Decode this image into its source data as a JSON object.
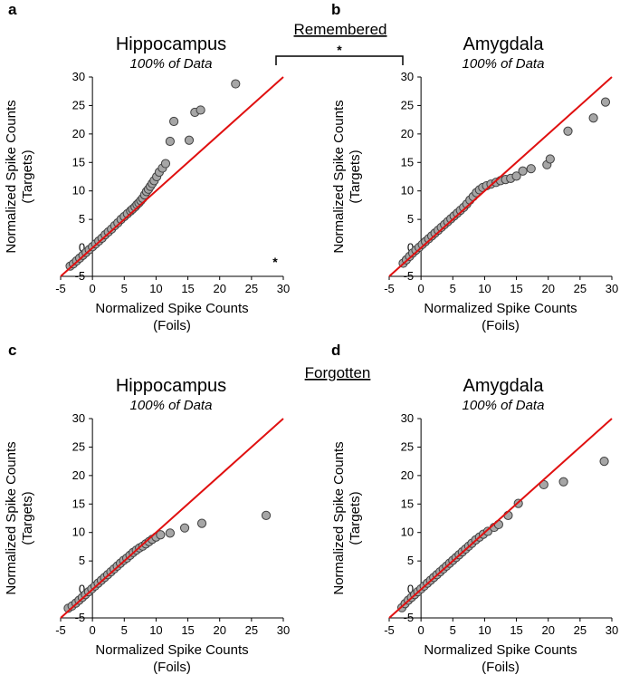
{
  "group_labels": {
    "top": "Remembered",
    "bottom": "Forgotten"
  },
  "significance": {
    "between_panels": "*",
    "panel_a": "*"
  },
  "colors": {
    "diagonal": "#e01010",
    "marker_fill": "#a6a6a6",
    "marker_stroke": "#404040"
  },
  "chart_data": [
    {
      "panel": "a",
      "type": "scatter",
      "title": "Hippocampus",
      "subtitle": "100% of Data",
      "xlabel": [
        "Normalized Spike Counts",
        "(Foils)"
      ],
      "ylabel": [
        "Normalized Spike Counts",
        "(Targets)"
      ],
      "xlim": [
        -5,
        30
      ],
      "ylim": [
        -5,
        30
      ],
      "xticks": [
        "-5",
        "0",
        "5",
        "10",
        "15",
        "20",
        "25",
        "30"
      ],
      "yticks": [
        "-5",
        "0",
        "5",
        "10",
        "15",
        "20",
        "25",
        "30"
      ],
      "reference_line": "y = x",
      "x": [
        -3.5,
        -3,
        -2.5,
        -2,
        -1.5,
        -1,
        -0.5,
        0,
        0.5,
        1,
        1.5,
        2,
        2.5,
        3,
        3.5,
        4,
        4.5,
        5,
        5.5,
        6,
        6.3,
        6.7,
        7,
        7.3,
        7.6,
        7.9,
        8.2,
        8.5,
        8.8,
        9.1,
        9.4,
        9.7,
        10.1,
        10.5,
        11,
        11.5,
        12.2,
        12.8,
        15.2,
        16.1,
        17.0,
        22.5
      ],
      "y": [
        -3.2,
        -2.8,
        -2.3,
        -1.8,
        -1.3,
        -0.8,
        -0.3,
        0.2,
        0.7,
        1.2,
        1.7,
        2.3,
        2.8,
        3.3,
        3.9,
        4.4,
        5.0,
        5.5,
        6.0,
        6.5,
        6.8,
        7.2,
        7.6,
        7.9,
        8.3,
        8.7,
        9.3,
        9.9,
        10.3,
        10.8,
        11.3,
        11.8,
        12.5,
        13.3,
        14.0,
        14.8,
        18.7,
        22.2,
        18.9,
        23.8,
        24.2,
        28.8
      ]
    },
    {
      "panel": "b",
      "type": "scatter",
      "title": "Amygdala",
      "subtitle": "100% of Data",
      "xlabel": [
        "Normalized Spike Counts",
        "(Foils)"
      ],
      "ylabel": [
        "Normalized Spike Counts",
        "(Targets)"
      ],
      "xlim": [
        -5,
        30
      ],
      "ylim": [
        -5,
        30
      ],
      "xticks": [
        "-5",
        "0",
        "5",
        "10",
        "15",
        "20",
        "25",
        "30"
      ],
      "yticks": [
        "-5",
        "0",
        "5",
        "10",
        "15",
        "20",
        "25",
        "30"
      ],
      "reference_line": "y = x",
      "x": [
        -2.8,
        -2.3,
        -1.8,
        -1.3,
        -0.8,
        -0.3,
        0.2,
        0.7,
        1.2,
        1.7,
        2.2,
        2.7,
        3.2,
        3.7,
        4.2,
        4.7,
        5.2,
        5.7,
        6.2,
        6.7,
        7.2,
        7.7,
        8.2,
        8.7,
        9.2,
        9.7,
        10.3,
        11.0,
        11.8,
        12.5,
        13.3,
        14.1,
        15.0,
        16.0,
        17.3,
        19.8,
        20.3,
        23.1,
        27.1,
        29.0
      ],
      "y": [
        -2.7,
        -2.1,
        -1.5,
        -0.9,
        -0.4,
        0.1,
        0.6,
        1.1,
        1.6,
        2.1,
        2.6,
        3.1,
        3.6,
        4.1,
        4.6,
        5.1,
        5.6,
        6.1,
        6.6,
        7.1,
        7.7,
        8.4,
        9.0,
        9.7,
        10.2,
        10.6,
        10.9,
        11.2,
        11.5,
        11.8,
        12.0,
        12.2,
        12.6,
        13.5,
        13.9,
        14.6,
        15.6,
        20.5,
        22.8,
        25.6
      ]
    },
    {
      "panel": "c",
      "type": "scatter",
      "title": "Hippocampus",
      "subtitle": "100% of Data",
      "xlabel": [
        "Normalized Spike Counts",
        "(Foils)"
      ],
      "ylabel": [
        "Normalized Spike Counts",
        "(Targets)"
      ],
      "xlim": [
        -5,
        30
      ],
      "ylim": [
        -5,
        30
      ],
      "xticks": [
        "-5",
        "0",
        "5",
        "10",
        "15",
        "20",
        "25",
        "30"
      ],
      "yticks": [
        "-5",
        "0",
        "5",
        "10",
        "15",
        "20",
        "25",
        "30"
      ],
      "reference_line": "y = x",
      "x": [
        -3.8,
        -3.2,
        -2.6,
        -2.1,
        -1.6,
        -1.1,
        -0.6,
        -0.1,
        0.4,
        0.9,
        1.4,
        1.9,
        2.4,
        2.9,
        3.4,
        3.9,
        4.4,
        4.9,
        5.4,
        5.9,
        6.4,
        6.9,
        7.4,
        7.9,
        8.4,
        8.9,
        9.4,
        10.0,
        10.7,
        12.2,
        14.5,
        17.2,
        27.3
      ],
      "y": [
        -3.3,
        -2.9,
        -2.4,
        -1.9,
        -1.4,
        -0.9,
        -0.4,
        0.1,
        0.6,
        1.1,
        1.6,
        2.1,
        2.6,
        3.1,
        3.6,
        4.1,
        4.6,
        5.1,
        5.5,
        6.0,
        6.5,
        6.9,
        7.3,
        7.6,
        8.0,
        8.4,
        8.8,
        9.2,
        9.6,
        9.9,
        10.8,
        11.6,
        13.0
      ]
    },
    {
      "panel": "d",
      "type": "scatter",
      "title": "Amygdala",
      "subtitle": "100% of Data",
      "xlabel": [
        "Normalized Spike Counts",
        "(Foils)"
      ],
      "ylabel": [
        "Normalized Spike Counts",
        "(Targets)"
      ],
      "xlim": [
        -5,
        30
      ],
      "ylim": [
        -5,
        30
      ],
      "xticks": [
        "-5",
        "0",
        "5",
        "10",
        "15",
        "20",
        "25",
        "30"
      ],
      "yticks": [
        "-5",
        "0",
        "5",
        "10",
        "15",
        "20",
        "25",
        "30"
      ],
      "reference_line": "y = x",
      "x": [
        -3.0,
        -2.5,
        -2.0,
        -1.5,
        -1.0,
        -0.5,
        0,
        0.5,
        1.0,
        1.5,
        2.0,
        2.5,
        3.0,
        3.5,
        4.0,
        4.5,
        5.0,
        5.5,
        6.0,
        6.5,
        7.0,
        7.5,
        8.0,
        8.6,
        9.2,
        9.8,
        10.5,
        11.5,
        12.2,
        13.7,
        15.3,
        19.3,
        22.4,
        28.8
      ],
      "y": [
        -3.2,
        -2.5,
        -1.9,
        -1.4,
        -0.9,
        -0.4,
        0.1,
        0.6,
        1.1,
        1.6,
        2.1,
        2.6,
        3.1,
        3.6,
        4.1,
        4.6,
        5.1,
        5.6,
        6.1,
        6.6,
        7.1,
        7.6,
        8.1,
        8.7,
        9.2,
        9.7,
        10.2,
        10.9,
        11.4,
        13.0,
        15.1,
        18.4,
        18.9,
        22.5
      ]
    }
  ]
}
